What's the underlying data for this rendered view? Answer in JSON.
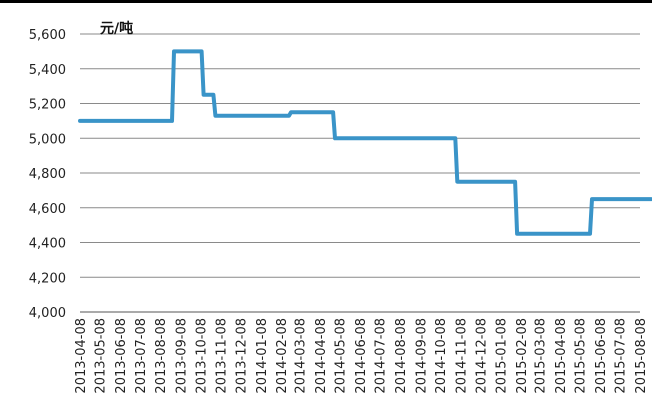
{
  "chart_data": {
    "type": "line",
    "unit": "元/吨",
    "yticks": [
      "4,000",
      "4,200",
      "4,400",
      "4,600",
      "4,800",
      "5,000",
      "5,200",
      "5,400",
      "5,600"
    ],
    "ylim": [
      4000,
      5600
    ],
    "grid": true,
    "color": "#3a94c8",
    "categories": [
      "2013-04-08",
      "2013-05-08",
      "2013-06-08",
      "2013-07-08",
      "2013-08-08",
      "2013-09-08",
      "2013-10-08",
      "2013-11-08",
      "2013-12-08",
      "2014-01-08",
      "2014-02-08",
      "2014-03-08",
      "2014-04-08",
      "2014-05-08",
      "2014-06-08",
      "2014-07-08",
      "2014-08-08",
      "2014-09-08",
      "2014-10-08",
      "2014-11-08",
      "2014-12-08",
      "2015-01-08",
      "2015-02-08",
      "2015-03-08",
      "2015-04-08",
      "2015-05-08",
      "2015-06-08",
      "2015-07-08",
      "2015-08-08"
    ],
    "series": [
      {
        "points": [
          [
            "2013-04-08",
            5100
          ],
          [
            "2013-08-26",
            5100
          ],
          [
            "2013-08-29",
            5500
          ],
          [
            "2013-10-10",
            5500
          ],
          [
            "2013-10-13",
            5250
          ],
          [
            "2013-10-28",
            5250
          ],
          [
            "2013-10-31",
            5130
          ],
          [
            "2014-02-20",
            5130
          ],
          [
            "2014-02-23",
            5150
          ],
          [
            "2014-04-28",
            5150
          ],
          [
            "2014-05-01",
            5000
          ],
          [
            "2014-10-31",
            5000
          ],
          [
            "2014-11-03",
            4750
          ],
          [
            "2015-01-30",
            4750
          ],
          [
            "2015-02-02",
            4450
          ],
          [
            "2015-05-24",
            4450
          ],
          [
            "2015-05-27",
            4650
          ],
          [
            "2015-08-25",
            4650
          ]
        ]
      }
    ]
  }
}
